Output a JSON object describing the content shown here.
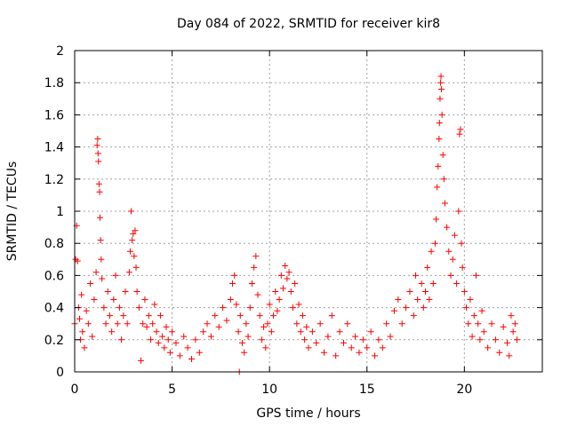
{
  "chart_data": {
    "type": "scatter",
    "title": "Day 084 of 2022, SRMTID for receiver kir8",
    "xlabel": "GPS time / hours",
    "ylabel": "SRMTID / TECUs",
    "xlim": [
      0,
      24
    ],
    "ylim": [
      0,
      2
    ],
    "xticks": [
      0,
      5,
      10,
      15,
      20
    ],
    "xtick_labels": [
      "0",
      "5",
      "10",
      "15",
      "20"
    ],
    "yticks": [
      0,
      0.2,
      0.4,
      0.6,
      0.8,
      1,
      1.2,
      1.4,
      1.6,
      1.8,
      2
    ],
    "ytick_labels": [
      "0",
      "0.2",
      "0.4",
      "0.6",
      "0.8",
      "1",
      "1.2",
      "1.4",
      "1.6",
      "1.8",
      "2"
    ],
    "grid": true,
    "marker": "plus",
    "color": "#ff0000",
    "series": [
      {
        "name": "SRMTID",
        "points": [
          [
            0.0,
            0.3
          ],
          [
            0.05,
            0.7
          ],
          [
            0.1,
            0.91
          ],
          [
            0.15,
            0.69
          ],
          [
            0.2,
            0.4
          ],
          [
            0.25,
            0.33
          ],
          [
            0.3,
            0.2
          ],
          [
            0.35,
            0.48
          ],
          [
            0.4,
            0.25
          ],
          [
            0.5,
            0.15
          ],
          [
            0.6,
            0.38
          ],
          [
            0.7,
            0.3
          ],
          [
            0.8,
            0.55
          ],
          [
            0.9,
            0.22
          ],
          [
            1.0,
            0.45
          ],
          [
            1.1,
            0.62
          ],
          [
            1.15,
            1.41
          ],
          [
            1.18,
            1.45
          ],
          [
            1.2,
            1.36
          ],
          [
            1.22,
            1.31
          ],
          [
            1.25,
            1.17
          ],
          [
            1.28,
            1.12
          ],
          [
            1.3,
            0.96
          ],
          [
            1.33,
            0.82
          ],
          [
            1.36,
            0.7
          ],
          [
            1.4,
            0.58
          ],
          [
            1.5,
            0.4
          ],
          [
            1.6,
            0.3
          ],
          [
            1.7,
            0.5
          ],
          [
            1.8,
            0.35
          ],
          [
            1.9,
            0.25
          ],
          [
            2.0,
            0.45
          ],
          [
            2.1,
            0.6
          ],
          [
            2.2,
            0.3
          ],
          [
            2.3,
            0.4
          ],
          [
            2.4,
            0.2
          ],
          [
            2.5,
            0.35
          ],
          [
            2.6,
            0.5
          ],
          [
            2.7,
            0.3
          ],
          [
            2.8,
            0.62
          ],
          [
            2.85,
            0.75
          ],
          [
            2.9,
            1.0
          ],
          [
            2.95,
            0.82
          ],
          [
            3.0,
            0.86
          ],
          [
            3.05,
            0.72
          ],
          [
            3.1,
            0.88
          ],
          [
            3.15,
            0.65
          ],
          [
            3.2,
            0.5
          ],
          [
            3.3,
            0.4
          ],
          [
            3.4,
            0.07
          ],
          [
            3.5,
            0.3
          ],
          [
            3.6,
            0.45
          ],
          [
            3.7,
            0.28
          ],
          [
            3.8,
            0.35
          ],
          [
            3.9,
            0.2
          ],
          [
            4.0,
            0.3
          ],
          [
            4.1,
            0.42
          ],
          [
            4.2,
            0.25
          ],
          [
            4.3,
            0.18
          ],
          [
            4.4,
            0.35
          ],
          [
            4.5,
            0.22
          ],
          [
            4.6,
            0.15
          ],
          [
            4.7,
            0.28
          ],
          [
            4.8,
            0.2
          ],
          [
            4.9,
            0.12
          ],
          [
            5.0,
            0.25
          ],
          [
            5.2,
            0.18
          ],
          [
            5.4,
            0.1
          ],
          [
            5.6,
            0.22
          ],
          [
            5.8,
            0.15
          ],
          [
            6.0,
            0.08
          ],
          [
            6.2,
            0.2
          ],
          [
            6.4,
            0.12
          ],
          [
            6.6,
            0.25
          ],
          [
            6.8,
            0.3
          ],
          [
            7.0,
            0.22
          ],
          [
            7.2,
            0.35
          ],
          [
            7.4,
            0.28
          ],
          [
            7.6,
            0.4
          ],
          [
            7.8,
            0.32
          ],
          [
            8.0,
            0.45
          ],
          [
            8.1,
            0.55
          ],
          [
            8.2,
            0.6
          ],
          [
            8.3,
            0.42
          ],
          [
            8.4,
            0.25
          ],
          [
            8.45,
            0.0
          ],
          [
            8.5,
            0.35
          ],
          [
            8.6,
            0.18
          ],
          [
            8.7,
            0.12
          ],
          [
            8.8,
            0.3
          ],
          [
            8.9,
            0.22
          ],
          [
            9.0,
            0.4
          ],
          [
            9.1,
            0.55
          ],
          [
            9.2,
            0.65
          ],
          [
            9.3,
            0.72
          ],
          [
            9.4,
            0.48
          ],
          [
            9.5,
            0.35
          ],
          [
            9.6,
            0.2
          ],
          [
            9.7,
            0.28
          ],
          [
            9.8,
            0.15
          ],
          [
            9.9,
            0.3
          ],
          [
            10.0,
            0.42
          ],
          [
            10.1,
            0.25
          ],
          [
            10.2,
            0.35
          ],
          [
            10.3,
            0.5
          ],
          [
            10.4,
            0.38
          ],
          [
            10.5,
            0.45
          ],
          [
            10.6,
            0.6
          ],
          [
            10.7,
            0.52
          ],
          [
            10.8,
            0.66
          ],
          [
            10.9,
            0.58
          ],
          [
            11.0,
            0.62
          ],
          [
            11.1,
            0.5
          ],
          [
            11.2,
            0.4
          ],
          [
            11.3,
            0.55
          ],
          [
            11.4,
            0.3
          ],
          [
            11.5,
            0.42
          ],
          [
            11.6,
            0.25
          ],
          [
            11.7,
            0.35
          ],
          [
            11.8,
            0.2
          ],
          [
            11.9,
            0.28
          ],
          [
            12.0,
            0.15
          ],
          [
            12.2,
            0.25
          ],
          [
            12.4,
            0.18
          ],
          [
            12.6,
            0.3
          ],
          [
            12.8,
            0.12
          ],
          [
            13.0,
            0.22
          ],
          [
            13.2,
            0.35
          ],
          [
            13.4,
            0.1
          ],
          [
            13.6,
            0.25
          ],
          [
            13.8,
            0.18
          ],
          [
            14.0,
            0.3
          ],
          [
            14.2,
            0.15
          ],
          [
            14.4,
            0.22
          ],
          [
            14.6,
            0.12
          ],
          [
            14.8,
            0.2
          ],
          [
            15.0,
            0.15
          ],
          [
            15.2,
            0.25
          ],
          [
            15.4,
            0.1
          ],
          [
            15.6,
            0.2
          ],
          [
            15.8,
            0.15
          ],
          [
            16.0,
            0.3
          ],
          [
            16.2,
            0.22
          ],
          [
            16.4,
            0.38
          ],
          [
            16.6,
            0.45
          ],
          [
            16.8,
            0.3
          ],
          [
            17.0,
            0.4
          ],
          [
            17.2,
            0.5
          ],
          [
            17.4,
            0.35
          ],
          [
            17.5,
            0.6
          ],
          [
            17.6,
            0.45
          ],
          [
            17.8,
            0.55
          ],
          [
            17.9,
            0.4
          ],
          [
            18.0,
            0.5
          ],
          [
            18.1,
            0.65
          ],
          [
            18.2,
            0.45
          ],
          [
            18.3,
            0.75
          ],
          [
            18.4,
            0.55
          ],
          [
            18.5,
            0.8
          ],
          [
            18.55,
            0.95
          ],
          [
            18.6,
            1.15
          ],
          [
            18.65,
            1.28
          ],
          [
            18.7,
            1.45
          ],
          [
            18.72,
            1.55
          ],
          [
            18.75,
            1.7
          ],
          [
            18.78,
            1.8
          ],
          [
            18.8,
            1.84
          ],
          [
            18.82,
            1.76
          ],
          [
            18.85,
            1.6
          ],
          [
            18.9,
            1.35
          ],
          [
            18.95,
            1.2
          ],
          [
            19.0,
            1.05
          ],
          [
            19.1,
            0.9
          ],
          [
            19.2,
            0.75
          ],
          [
            19.3,
            0.6
          ],
          [
            19.4,
            0.7
          ],
          [
            19.5,
            0.85
          ],
          [
            19.6,
            0.55
          ],
          [
            19.7,
            1.0
          ],
          [
            19.75,
            1.48
          ],
          [
            19.8,
            1.51
          ],
          [
            19.85,
            0.8
          ],
          [
            19.9,
            0.65
          ],
          [
            20.0,
            0.5
          ],
          [
            20.1,
            0.4
          ],
          [
            20.2,
            0.3
          ],
          [
            20.3,
            0.45
          ],
          [
            20.4,
            0.22
          ],
          [
            20.5,
            0.35
          ],
          [
            20.6,
            0.6
          ],
          [
            20.7,
            0.3
          ],
          [
            20.8,
            0.2
          ],
          [
            20.9,
            0.38
          ],
          [
            21.0,
            0.25
          ],
          [
            21.2,
            0.15
          ],
          [
            21.4,
            0.3
          ],
          [
            21.6,
            0.2
          ],
          [
            21.8,
            0.12
          ],
          [
            22.0,
            0.28
          ],
          [
            22.2,
            0.18
          ],
          [
            22.3,
            0.1
          ],
          [
            22.4,
            0.35
          ],
          [
            22.5,
            0.25
          ],
          [
            22.6,
            0.3
          ],
          [
            22.7,
            0.2
          ]
        ]
      }
    ]
  }
}
